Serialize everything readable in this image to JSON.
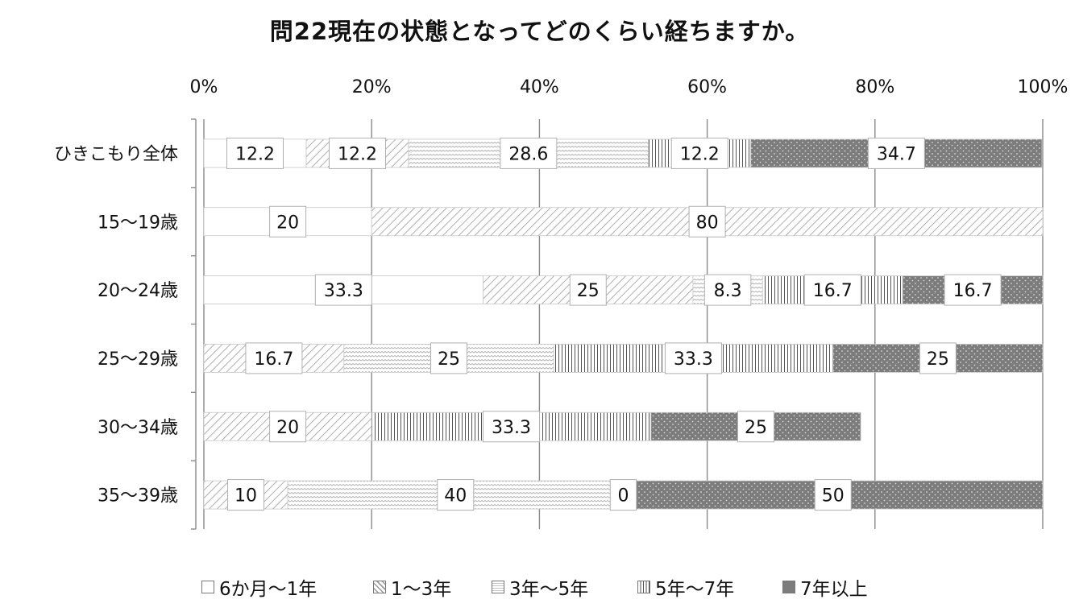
{
  "chart_data": {
    "type": "bar",
    "stacked": true,
    "percent": true,
    "orientation": "horizontal",
    "title": "問22現在の状態となってどのくらい経ちますか。",
    "categories": [
      "ひきこもり全体",
      "15〜19歳",
      "20〜24歳",
      "25〜29歳",
      "30〜34歳",
      "35〜39歳"
    ],
    "series": [
      {
        "name": "6か月〜1年",
        "values": [
          12.2,
          20,
          33.3,
          0,
          0,
          0
        ]
      },
      {
        "name": "1〜3年",
        "values": [
          12.2,
          80,
          25,
          16.7,
          20,
          10
        ]
      },
      {
        "name": "3年〜5年",
        "values": [
          28.6,
          0,
          8.3,
          25,
          0,
          40
        ]
      },
      {
        "name": "5年〜7年",
        "values": [
          12.2,
          0,
          16.7,
          33.3,
          33.3,
          0
        ]
      },
      {
        "name": "7年以上",
        "values": [
          34.7,
          0,
          16.7,
          25,
          25,
          50
        ]
      }
    ],
    "data_labels": [
      [
        "12.2",
        "12.2",
        "28.6",
        "12.2",
        "34.7"
      ],
      [
        "20",
        "80",
        "",
        "",
        ""
      ],
      [
        "33.3",
        "25",
        "8.3",
        "16.7",
        "16.7"
      ],
      [
        "",
        "16.7",
        "25",
        "33.3",
        "25"
      ],
      [
        "",
        "20",
        "",
        "33.3",
        "25"
      ],
      [
        "",
        "10",
        "40",
        "0",
        "50"
      ]
    ],
    "xticks": [
      "0%",
      "20%",
      "40%",
      "60%",
      "80%",
      "100%"
    ],
    "xlim": [
      0,
      100
    ],
    "grid": true,
    "legend_position": "bottom"
  }
}
